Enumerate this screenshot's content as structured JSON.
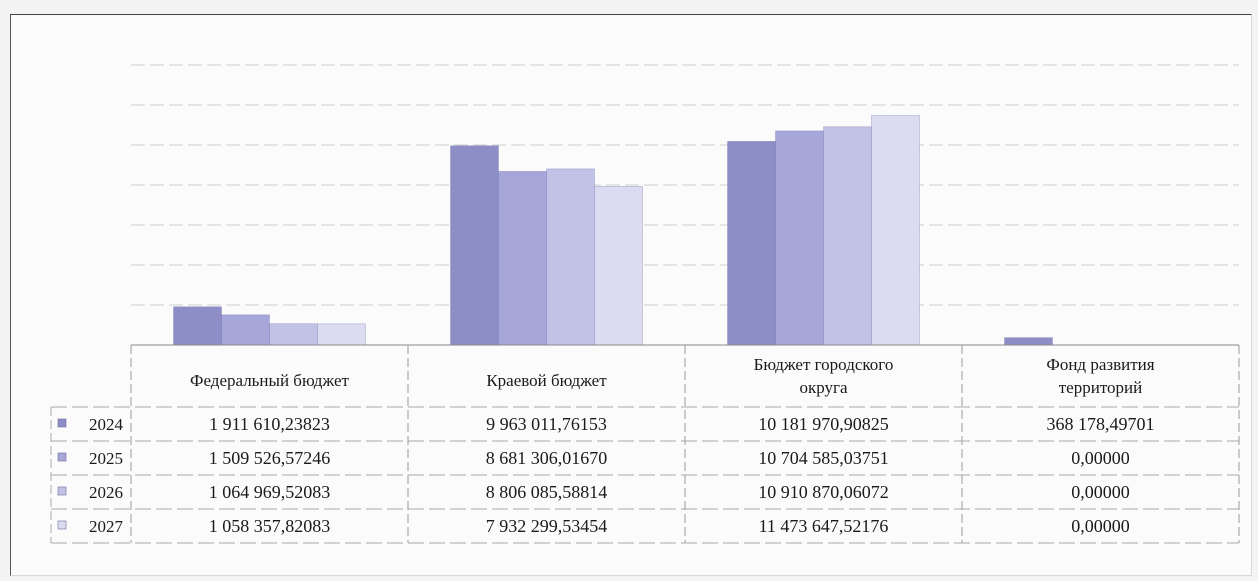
{
  "chart_data": {
    "type": "bar",
    "categories": [
      [
        "Федеральный бюджет"
      ],
      [
        "Краевой бюджет"
      ],
      [
        "Бюджет городского",
        "округа"
      ],
      [
        "Фонд развития",
        "территорий"
      ]
    ],
    "series": [
      {
        "name": "2024",
        "values": [
          1911610.23823,
          9963011.76153,
          10181970.90825,
          368178.49701
        ],
        "labels": [
          "1 911 610,23823",
          "9 963 011,76153",
          "10 181 970,90825",
          "368 178,49701"
        ]
      },
      {
        "name": "2025",
        "values": [
          1509526.57246,
          8681306.0167,
          10704585.03751,
          0
        ],
        "labels": [
          "1 509 526,57246",
          "8 681 306,01670",
          "10 704 585,03751",
          "0,00000"
        ]
      },
      {
        "name": "2026",
        "values": [
          1064969.52083,
          8806085.58814,
          10910870.06072,
          0
        ],
        "labels": [
          "1 064 969,52083",
          "8 806 085,58814",
          "10 910 870,06072",
          "0,00000"
        ]
      },
      {
        "name": "2027",
        "values": [
          1058357.82083,
          7932299.53454,
          11473647.52176,
          0
        ],
        "labels": [
          "1 058 357,82083",
          "7 932 299,53454",
          "11 473 647,52176",
          "0,00000"
        ]
      }
    ],
    "ylim": [
      0,
      14000000
    ],
    "grid": true,
    "legend": "data-table-left",
    "colors": [
      "#8e8ec6",
      "#a6a6d8",
      "#c2c2e6",
      "#dcdcf0"
    ]
  }
}
